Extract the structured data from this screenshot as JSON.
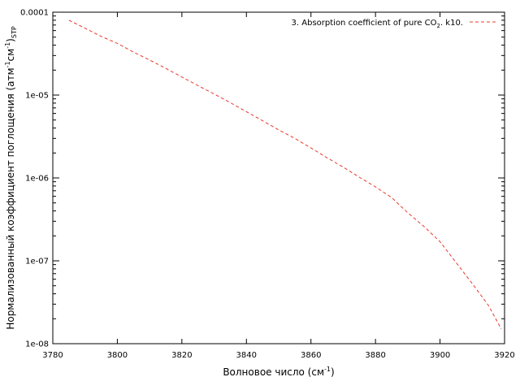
{
  "chart_data": {
    "type": "line",
    "xlabel_main": "Волновое число (см",
    "xlabel_sup": "-1",
    "xlabel_tail": ")",
    "ylabel": {
      "main": "Нормализованный коэффициент поглощения (атм",
      "sup1": "-1",
      "mid": "см",
      "sup2": "-1",
      "close": ")",
      "sub": "STP"
    },
    "xlim": [
      3780,
      3920
    ],
    "ylim": [
      1e-08,
      0.0001
    ],
    "yscale": "log",
    "x_ticks": [
      "3780",
      "3800",
      "3820",
      "3840",
      "3860",
      "3880",
      "3900",
      "3920"
    ],
    "y_ticks": [
      "1e-08",
      "1e-07",
      "1e-06",
      "1e-05",
      "0.0001"
    ],
    "legend": {
      "placement": "top-right",
      "pre": "3. Absorption coefficient of pure CO",
      "sub": "2",
      "post": ". k10."
    },
    "series": [
      {
        "name": "3. Absorption coefficient of pure CO2. k10.",
        "color": "#e8392b",
        "dash": "dashed",
        "x": [
          3785,
          3790,
          3795,
          3800,
          3805,
          3810,
          3815,
          3820,
          3825,
          3830,
          3835,
          3840,
          3845,
          3850,
          3855,
          3860,
          3865,
          3870,
          3875,
          3880,
          3885,
          3890,
          3895,
          3900,
          3905,
          3910,
          3915,
          3919
        ],
        "y": [
          8e-05,
          6.4e-05,
          5.1e-05,
          4.2e-05,
          3.3e-05,
          2.65e-05,
          2.1e-05,
          1.65e-05,
          1.3e-05,
          1.03e-05,
          8.1e-06,
          6.3e-06,
          4.9e-06,
          3.8e-06,
          3e-06,
          2.3e-06,
          1.75e-06,
          1.35e-06,
          1.02e-06,
          7.8e-07,
          5.8e-07,
          3.8e-07,
          2.6e-07,
          1.7e-07,
          9.5e-08,
          5.3e-08,
          2.9e-08,
          1.5e-08
        ]
      }
    ]
  }
}
